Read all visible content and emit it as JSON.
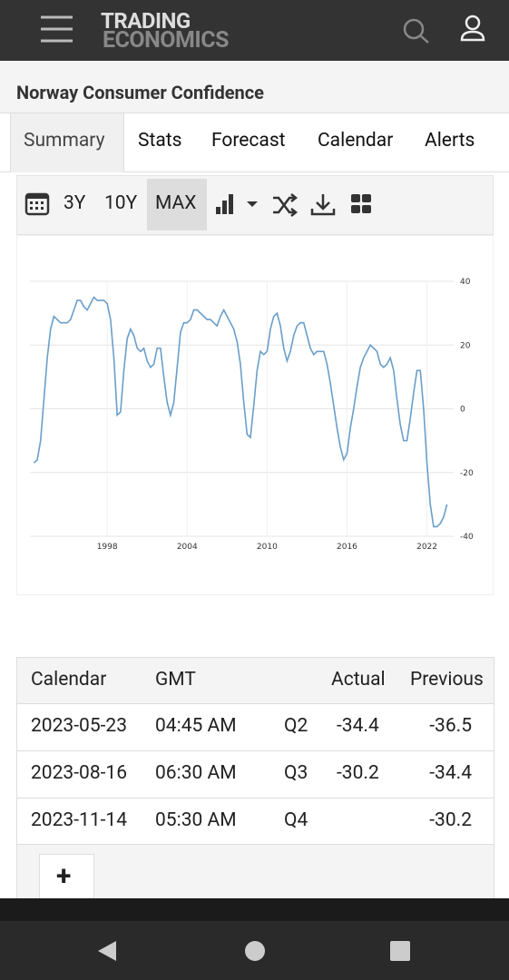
{
  "header": {
    "logo_line1": "TRADING",
    "logo_line2": "ECONOMICS"
  },
  "page_title": "Norway Consumer Confidence",
  "tabs": [
    "Summary",
    "Stats",
    "Forecast",
    "Calendar",
    "Alerts"
  ],
  "toolbar": [
    "3Y",
    "10Y",
    "MAX"
  ],
  "chart_data": {
    "type": "line",
    "color": "#6a9ec9",
    "grid": true,
    "x": [
      1992.5,
      1992.75,
      1993,
      1993.25,
      1993.5,
      1993.75,
      1994,
      1994.25,
      1994.5,
      1994.75,
      1995,
      1995.25,
      1995.5,
      1995.75,
      1996,
      1996.25,
      1996.5,
      1996.75,
      1997,
      1997.25,
      1997.5,
      1997.75,
      1998,
      1998.25,
      1998.5,
      1998.75,
      1999,
      1999.25,
      1999.5,
      1999.75,
      2000,
      2000.25,
      2000.5,
      2000.75,
      2001,
      2001.25,
      2001.5,
      2001.75,
      2002,
      2002.25,
      2002.5,
      2002.75,
      2003,
      2003.25,
      2003.5,
      2003.75,
      2004,
      2004.25,
      2004.5,
      2004.75,
      2005,
      2005.25,
      2005.5,
      2005.75,
      2006,
      2006.25,
      2006.5,
      2006.75,
      2007,
      2007.25,
      2007.5,
      2007.75,
      2008,
      2008.25,
      2008.5,
      2008.75,
      2009,
      2009.25,
      2009.5,
      2009.75,
      2010,
      2010.25,
      2010.5,
      2010.75,
      2011,
      2011.25,
      2011.5,
      2011.75,
      2012,
      2012.25,
      2012.5,
      2012.75,
      2013,
      2013.25,
      2013.5,
      2013.75,
      2014,
      2014.25,
      2014.5,
      2014.75,
      2015,
      2015.25,
      2015.5,
      2015.75,
      2016,
      2016.25,
      2016.5,
      2016.75,
      2017,
      2017.25,
      2017.5,
      2017.75,
      2018,
      2018.25,
      2018.5,
      2018.75,
      2019,
      2019.25,
      2019.5,
      2019.75,
      2020,
      2020.25,
      2020.5,
      2020.75,
      2021,
      2021.25,
      2021.5,
      2021.75,
      2022,
      2022.25,
      2022.5,
      2022.75,
      2023,
      2023.25,
      2023.5
    ],
    "values": [
      -17,
      -16,
      -10,
      3,
      16,
      25,
      29,
      28,
      27,
      27,
      27,
      28,
      31,
      34,
      34,
      32,
      31,
      33,
      35,
      34,
      34,
      34,
      33,
      28,
      16,
      -2,
      -1,
      12,
      22,
      25,
      23,
      19,
      18,
      19,
      15,
      13,
      14,
      19,
      19,
      10,
      2,
      -2,
      2,
      13,
      24,
      27,
      27,
      28,
      31,
      31,
      30,
      29,
      28,
      28,
      27,
      26,
      29,
      31,
      29,
      27,
      25,
      21,
      14,
      2,
      -8,
      -9,
      1,
      12,
      18,
      17,
      18,
      25,
      29,
      30,
      26,
      19,
      15,
      18,
      23,
      26,
      27,
      27,
      23,
      19,
      17,
      18,
      18,
      18,
      14,
      8,
      1,
      -6,
      -12,
      -16,
      -14,
      -6,
      0,
      7,
      13,
      16,
      18,
      20,
      19,
      18,
      14,
      13,
      14,
      16,
      12,
      3,
      -5,
      -10,
      -10,
      -3,
      5,
      12,
      12,
      0,
      -17,
      -30,
      -37,
      -37,
      -36,
      -34,
      -30
    ],
    "xlim": [
      1992.2,
      2023.8
    ],
    "xticks": [
      1998,
      2004,
      2010,
      2016,
      2022
    ],
    "ylim": [
      -40,
      40
    ],
    "yticks": [
      -40,
      -20,
      0,
      20,
      40
    ]
  },
  "table": {
    "columns": [
      "Calendar",
      "GMT",
      "Actual",
      "Previous"
    ],
    "rows": [
      {
        "date": "2023-05-23",
        "time": "04:45 AM",
        "period": "Q2",
        "actual": -34.4,
        "previous": -36.5
      },
      {
        "date": "2023-08-16",
        "time": "06:30 AM",
        "period": "Q3",
        "actual": -30.2,
        "previous": -34.4
      },
      {
        "date": "2023-11-14",
        "time": "05:30 AM",
        "period": "Q4",
        "previous": -30.2
      }
    ]
  },
  "add_button": "+"
}
